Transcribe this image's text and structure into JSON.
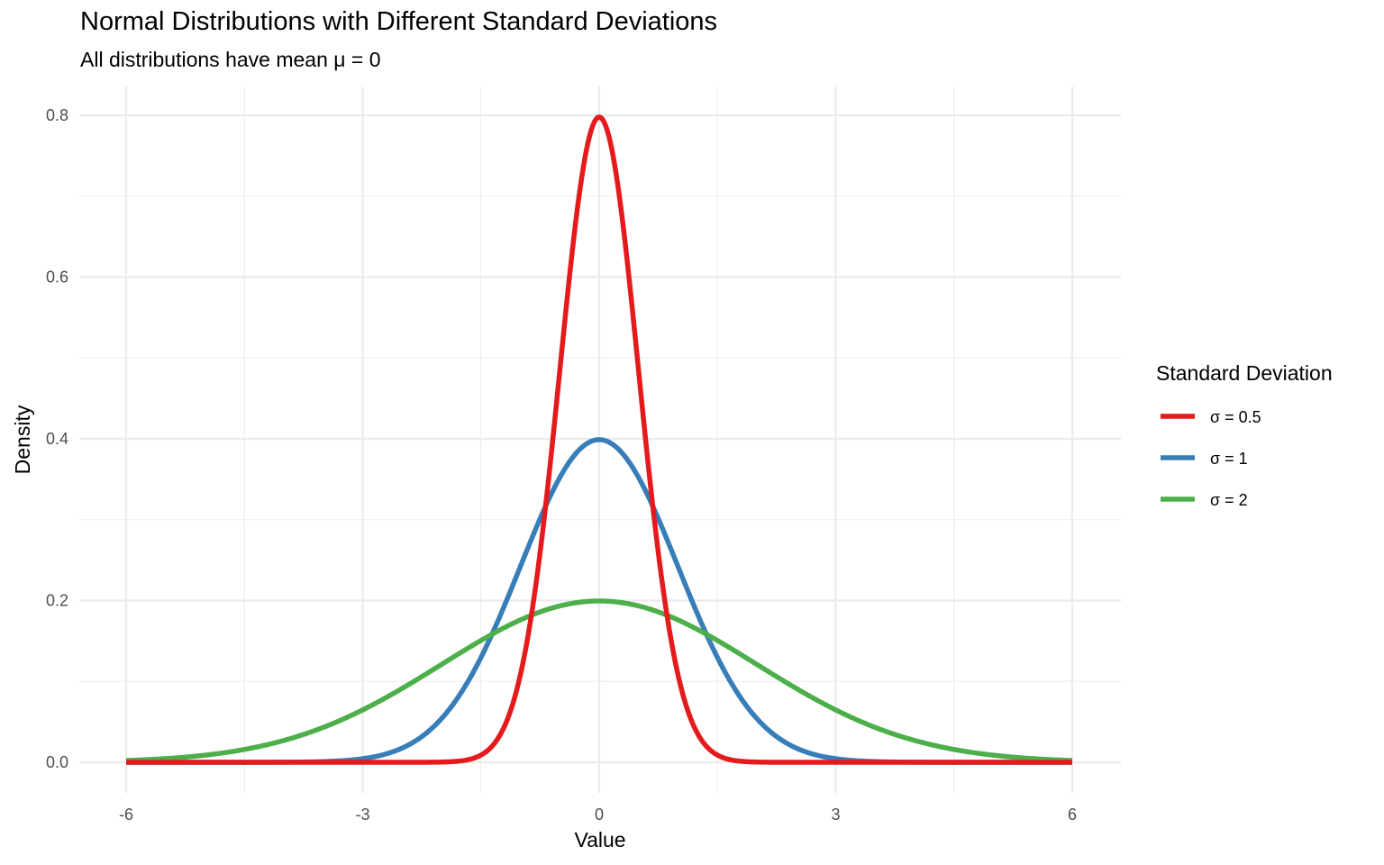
{
  "chart_data": {
    "type": "line",
    "title": "Normal Distributions with Different Standard Deviations",
    "subtitle": "All distributions have mean μ = 0",
    "xlabel": "Value",
    "ylabel": "Density",
    "xlim": [
      -6,
      6
    ],
    "ylim": [
      0,
      0.8
    ],
    "xticks": [
      -6,
      -3,
      0,
      3,
      6
    ],
    "xtick_labels": [
      "-6",
      "-3",
      "0",
      "3",
      "6"
    ],
    "yticks": [
      0,
      0.2,
      0.4,
      0.6,
      0.8
    ],
    "ytick_labels": [
      "0.0",
      "0.2",
      "0.4",
      "0.6",
      "0.8"
    ],
    "grid": true,
    "legend": {
      "title": "Standard Deviation",
      "placement": "right"
    },
    "mean": 0,
    "series": [
      {
        "name": "σ = 0.5",
        "sd": 0.5,
        "color": "#e41a1c"
      },
      {
        "name": "σ = 1",
        "sd": 1,
        "color": "#377eb8"
      },
      {
        "name": "σ = 2",
        "sd": 2,
        "color": "#4daf4a"
      }
    ]
  }
}
